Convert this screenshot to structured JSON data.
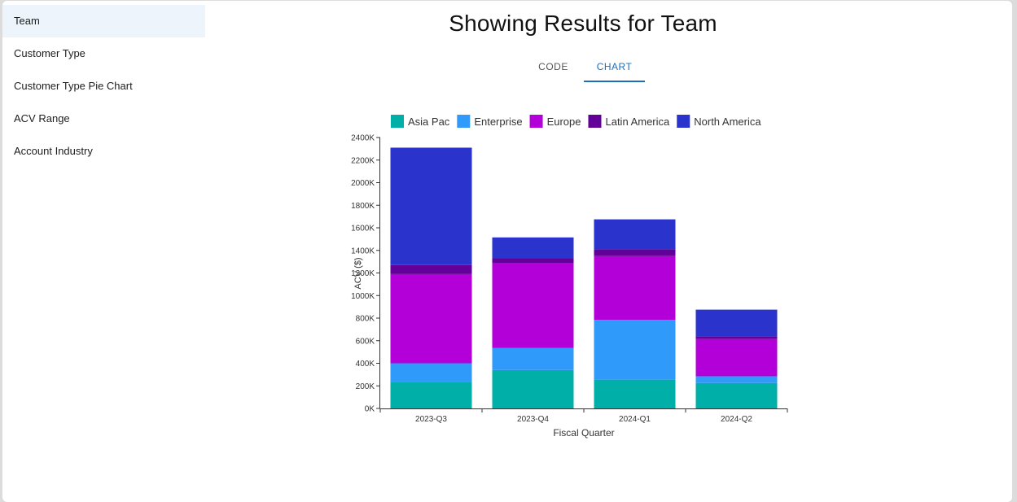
{
  "sidebar": {
    "items": [
      {
        "label": "Team",
        "selected": true
      },
      {
        "label": "Customer Type",
        "selected": false
      },
      {
        "label": "Customer Type Pie Chart",
        "selected": false
      },
      {
        "label": "ACV Range",
        "selected": false
      },
      {
        "label": "Account Industry",
        "selected": false
      }
    ]
  },
  "header": {
    "title": "Showing Results for Team"
  },
  "tabs": [
    {
      "label": "CODE",
      "active": false
    },
    {
      "label": "CHART",
      "active": true
    }
  ],
  "chart_data": {
    "type": "bar",
    "stacked": true,
    "title": "",
    "xlabel": "Fiscal Quarter",
    "ylabel": "ACV ($)",
    "ylim": [
      0,
      2400000
    ],
    "yticks": [
      "0K",
      "200K",
      "400K",
      "600K",
      "800K",
      "1000K",
      "1200K",
      "1400K",
      "1600K",
      "1800K",
      "2000K",
      "2200K",
      "2400K"
    ],
    "categories": [
      "2023-Q3",
      "2023-Q4",
      "2024-Q1",
      "2024-Q2"
    ],
    "legend_position": "top",
    "grid": false,
    "series": [
      {
        "name": "Asia Pac",
        "color": "#00b0a8",
        "values": [
          235000,
          340000,
          255000,
          225000
        ]
      },
      {
        "name": "Enterprise",
        "color": "#2f9afa",
        "values": [
          165000,
          195000,
          530000,
          60000
        ]
      },
      {
        "name": "Europe",
        "color": "#b300d9",
        "values": [
          790000,
          750000,
          565000,
          330000
        ]
      },
      {
        "name": "Latin America",
        "color": "#630099",
        "values": [
          80000,
          45000,
          60000,
          25000
        ]
      },
      {
        "name": "North America",
        "color": "#2a33cc",
        "values": [
          1040000,
          185000,
          265000,
          235000
        ]
      }
    ]
  }
}
